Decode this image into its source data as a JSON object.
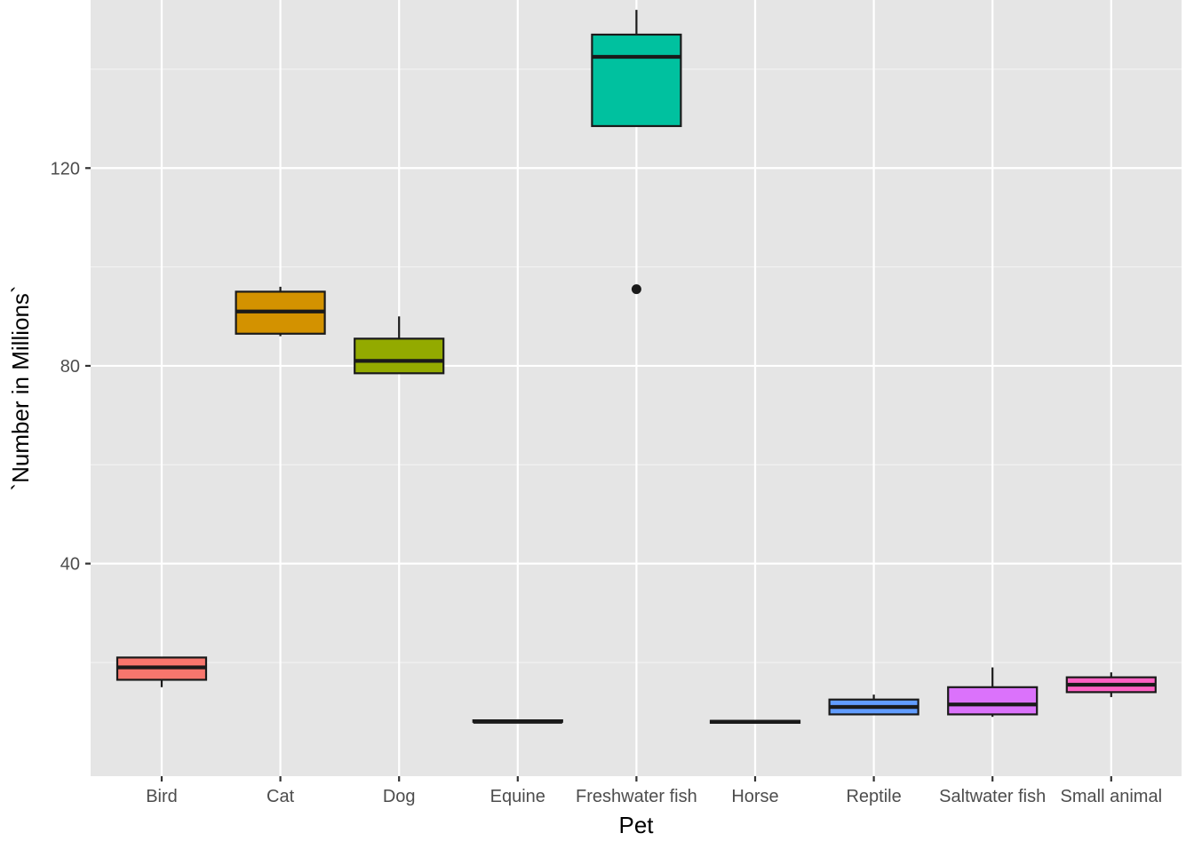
{
  "chart_data": {
    "type": "boxplot",
    "xlabel": "Pet",
    "ylabel": "`Number in Millions`",
    "ylim": [
      -3,
      154
    ],
    "y_ticks": [
      40,
      80,
      120
    ],
    "grid": true,
    "legend": "none",
    "categories": [
      "Bird",
      "Cat",
      "Dog",
      "Equine",
      "Freshwater fish",
      "Horse",
      "Reptile",
      "Saltwater fish",
      "Small animal"
    ],
    "boxes": [
      {
        "category": "Bird",
        "color": "#F8766D",
        "whisker_low": 15.0,
        "q1": 16.5,
        "median": 19.0,
        "q3": 21.0,
        "whisker_high": 21.0,
        "outliers": []
      },
      {
        "category": "Cat",
        "color": "#D39200",
        "whisker_low": 86.0,
        "q1": 86.5,
        "median": 91.0,
        "q3": 95.0,
        "whisker_high": 96.0,
        "outliers": []
      },
      {
        "category": "Dog",
        "color": "#93AA00",
        "whisker_low": 78.5,
        "q1": 78.5,
        "median": 81.0,
        "q3": 85.5,
        "whisker_high": 90.0,
        "outliers": []
      },
      {
        "category": "Equine",
        "color": "#00BA38",
        "whisker_low": 8.0,
        "q1": 8.0,
        "median": 8.0,
        "q3": 8.3,
        "whisker_high": 8.3,
        "outliers": []
      },
      {
        "category": "Freshwater fish",
        "color": "#00C19F",
        "whisker_low": 128.5,
        "q1": 128.5,
        "median": 142.5,
        "q3": 147.0,
        "whisker_high": 152.0,
        "outliers": [
          95.5
        ]
      },
      {
        "category": "Horse",
        "color": "#00B9E3",
        "whisker_low": 7.8,
        "q1": 7.8,
        "median": 8.0,
        "q3": 8.2,
        "whisker_high": 8.2,
        "outliers": []
      },
      {
        "category": "Reptile",
        "color": "#619CFF",
        "whisker_low": 9.5,
        "q1": 9.5,
        "median": 11.0,
        "q3": 12.5,
        "whisker_high": 13.5,
        "outliers": []
      },
      {
        "category": "Saltwater fish",
        "color": "#DB72FB",
        "whisker_low": 9.0,
        "q1": 9.5,
        "median": 11.5,
        "q3": 15.0,
        "whisker_high": 19.0,
        "outliers": []
      },
      {
        "category": "Small animal",
        "color": "#FF61C3",
        "whisker_low": 13.0,
        "q1": 14.0,
        "median": 15.5,
        "q3": 17.0,
        "whisker_high": 18.0,
        "outliers": []
      }
    ],
    "colors": {
      "panel": "#E5E5E5",
      "grid_major": "#FFFFFF",
      "box_outline": "#1A1A1A",
      "tick_text": "#4D4D4D",
      "axis_title": "#000000"
    }
  }
}
